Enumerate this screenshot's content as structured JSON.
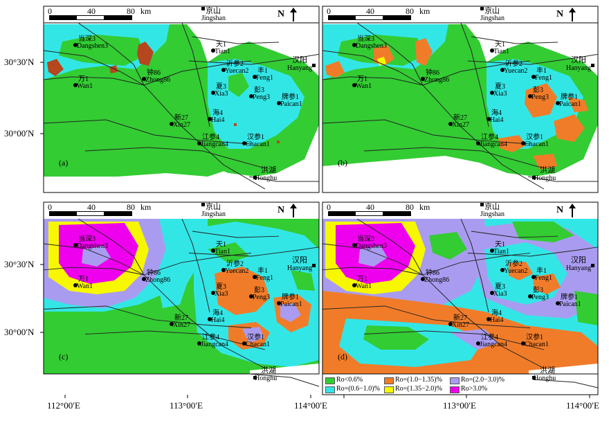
{
  "panels": [
    {
      "id": "a",
      "label": "(a)"
    },
    {
      "id": "b",
      "label": "(b)"
    },
    {
      "id": "c",
      "label": "(c)"
    },
    {
      "id": "d",
      "label": "(d)"
    }
  ],
  "scale_bar": {
    "ticks": [
      "0",
      "40",
      "80"
    ],
    "unit": "km"
  },
  "north_label": "N",
  "cities": [
    {
      "cn": "京山",
      "en": "Jingshan"
    },
    {
      "cn": "汉阳",
      "en": "Hanyang"
    },
    {
      "cn": "洪湖",
      "en": "Honghu"
    }
  ],
  "wells": [
    {
      "cn": "当深3",
      "en": "Dangshen3"
    },
    {
      "cn": "万1",
      "en": "Wan1"
    },
    {
      "cn": "钟86",
      "en": "Zhong86"
    },
    {
      "cn": "天1",
      "en": "Tian1"
    },
    {
      "cn": "沂参2",
      "en": "Yuecan2"
    },
    {
      "cn": "丰1",
      "en": "Feng1"
    },
    {
      "cn": "夏3",
      "en": "Xia3"
    },
    {
      "cn": "彭3",
      "en": "Peng3"
    },
    {
      "cn": "牌参1",
      "en": "Paican1"
    },
    {
      "cn": "海4",
      "en": "Hai4"
    },
    {
      "cn": "新27",
      "en": "Xin27"
    },
    {
      "cn": "汉参1",
      "en": "Chacan1"
    },
    {
      "cn": "江参4",
      "en": "Jiangcan4"
    }
  ],
  "lat_labels": [
    "30°30′N",
    "30°00′N",
    "30°30′N",
    "30°00′N"
  ],
  "lon_labels": [
    "112°00′E",
    "113°00′E",
    "114°00′E"
  ],
  "legend": [
    {
      "label": "Ro<0.6%",
      "color": "#33cc33"
    },
    {
      "label": "Ro=(0.6−1.0)%",
      "color": "#33e6e6"
    },
    {
      "label": "Ro=(1.0−1.35)%",
      "color": "#f07c2a"
    },
    {
      "label": "Ro=(1.35−2.0)%",
      "color": "#f7f700"
    },
    {
      "label": "Ro=(2.0−3.0)%",
      "color": "#a99cf0"
    },
    {
      "label": "Ro>3.0%",
      "color": "#ee00ee"
    }
  ],
  "colors": {
    "green": "#33cc33",
    "cyan": "#33e6e6",
    "orange": "#f07c2a",
    "yellow": "#f7f700",
    "lilac": "#a99cf0",
    "magenta": "#ee00ee",
    "rust": "#b5461e"
  }
}
